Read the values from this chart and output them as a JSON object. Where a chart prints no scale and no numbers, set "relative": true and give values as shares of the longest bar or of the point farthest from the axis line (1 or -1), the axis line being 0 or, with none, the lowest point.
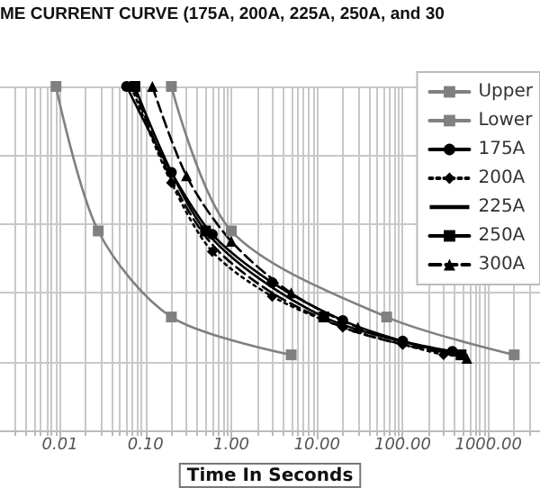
{
  "chart_data": {
    "type": "line",
    "title": "ME CURRENT CURVE (175A, 200A, 225A, 250A, and 30",
    "xlabel": "Time In Seconds",
    "log": "x",
    "relative": true,
    "grid": true,
    "legend": "top right",
    "xlim": [
      0.002,
      4000
    ],
    "xticks": [
      {
        "value": 0.01,
        "label": "0.01"
      },
      {
        "value": 0.1,
        "label": "0.10"
      },
      {
        "value": 1,
        "label": "1.00"
      },
      {
        "value": 10,
        "label": "10.00"
      },
      {
        "value": 100,
        "label": "100.00"
      },
      {
        "value": 1000,
        "label": "1000.00"
      }
    ],
    "series": [
      {
        "name": "Upper",
        "color": "#808080",
        "marker": "square",
        "line_style": "solid",
        "x": [
          0.009,
          0.028,
          0.2,
          5
        ],
        "values": [
          1,
          0.58,
          0.33,
          0.22
        ]
      },
      {
        "name": "Lower",
        "color": "#808080",
        "marker": "square",
        "line_style": "solid",
        "x": [
          0.2,
          1,
          65,
          2000
        ],
        "values": [
          1,
          0.58,
          0.33,
          0.22
        ]
      },
      {
        "name": "175A",
        "color": "#000000",
        "marker": "circle",
        "line_style": "solid",
        "x": [
          0.06,
          0.2,
          0.6,
          3,
          20,
          100,
          380
        ],
        "values": [
          1,
          0.75,
          0.57,
          0.43,
          0.32,
          0.26,
          0.23
        ]
      },
      {
        "name": "200A",
        "color": "#000000",
        "marker": "diamond",
        "line_style": "dotted",
        "x": [
          0.068,
          0.2,
          0.6,
          3,
          20,
          100,
          300
        ],
        "values": [
          1,
          0.72,
          0.52,
          0.39,
          0.3,
          0.25,
          0.22
        ]
      },
      {
        "name": "225A",
        "color": "#000000",
        "marker": "none",
        "line_style": "dashed",
        "x": [
          0.072,
          0.2,
          0.6,
          3,
          20,
          100,
          420
        ],
        "values": [
          1,
          0.73,
          0.54,
          0.4,
          0.3,
          0.25,
          0.22
        ]
      },
      {
        "name": "250A",
        "color": "#000000",
        "marker": "square",
        "line_style": "solid",
        "x": [
          0.075,
          0.5,
          12,
          480
        ],
        "values": [
          1,
          0.58,
          0.33,
          0.22
        ]
      },
      {
        "name": "300A",
        "color": "#000000",
        "marker": "triangle",
        "line_style": "dashed",
        "x": [
          0.12,
          0.3,
          1,
          5,
          30,
          560
        ],
        "values": [
          1,
          0.74,
          0.55,
          0.4,
          0.3,
          0.21
        ]
      }
    ]
  }
}
